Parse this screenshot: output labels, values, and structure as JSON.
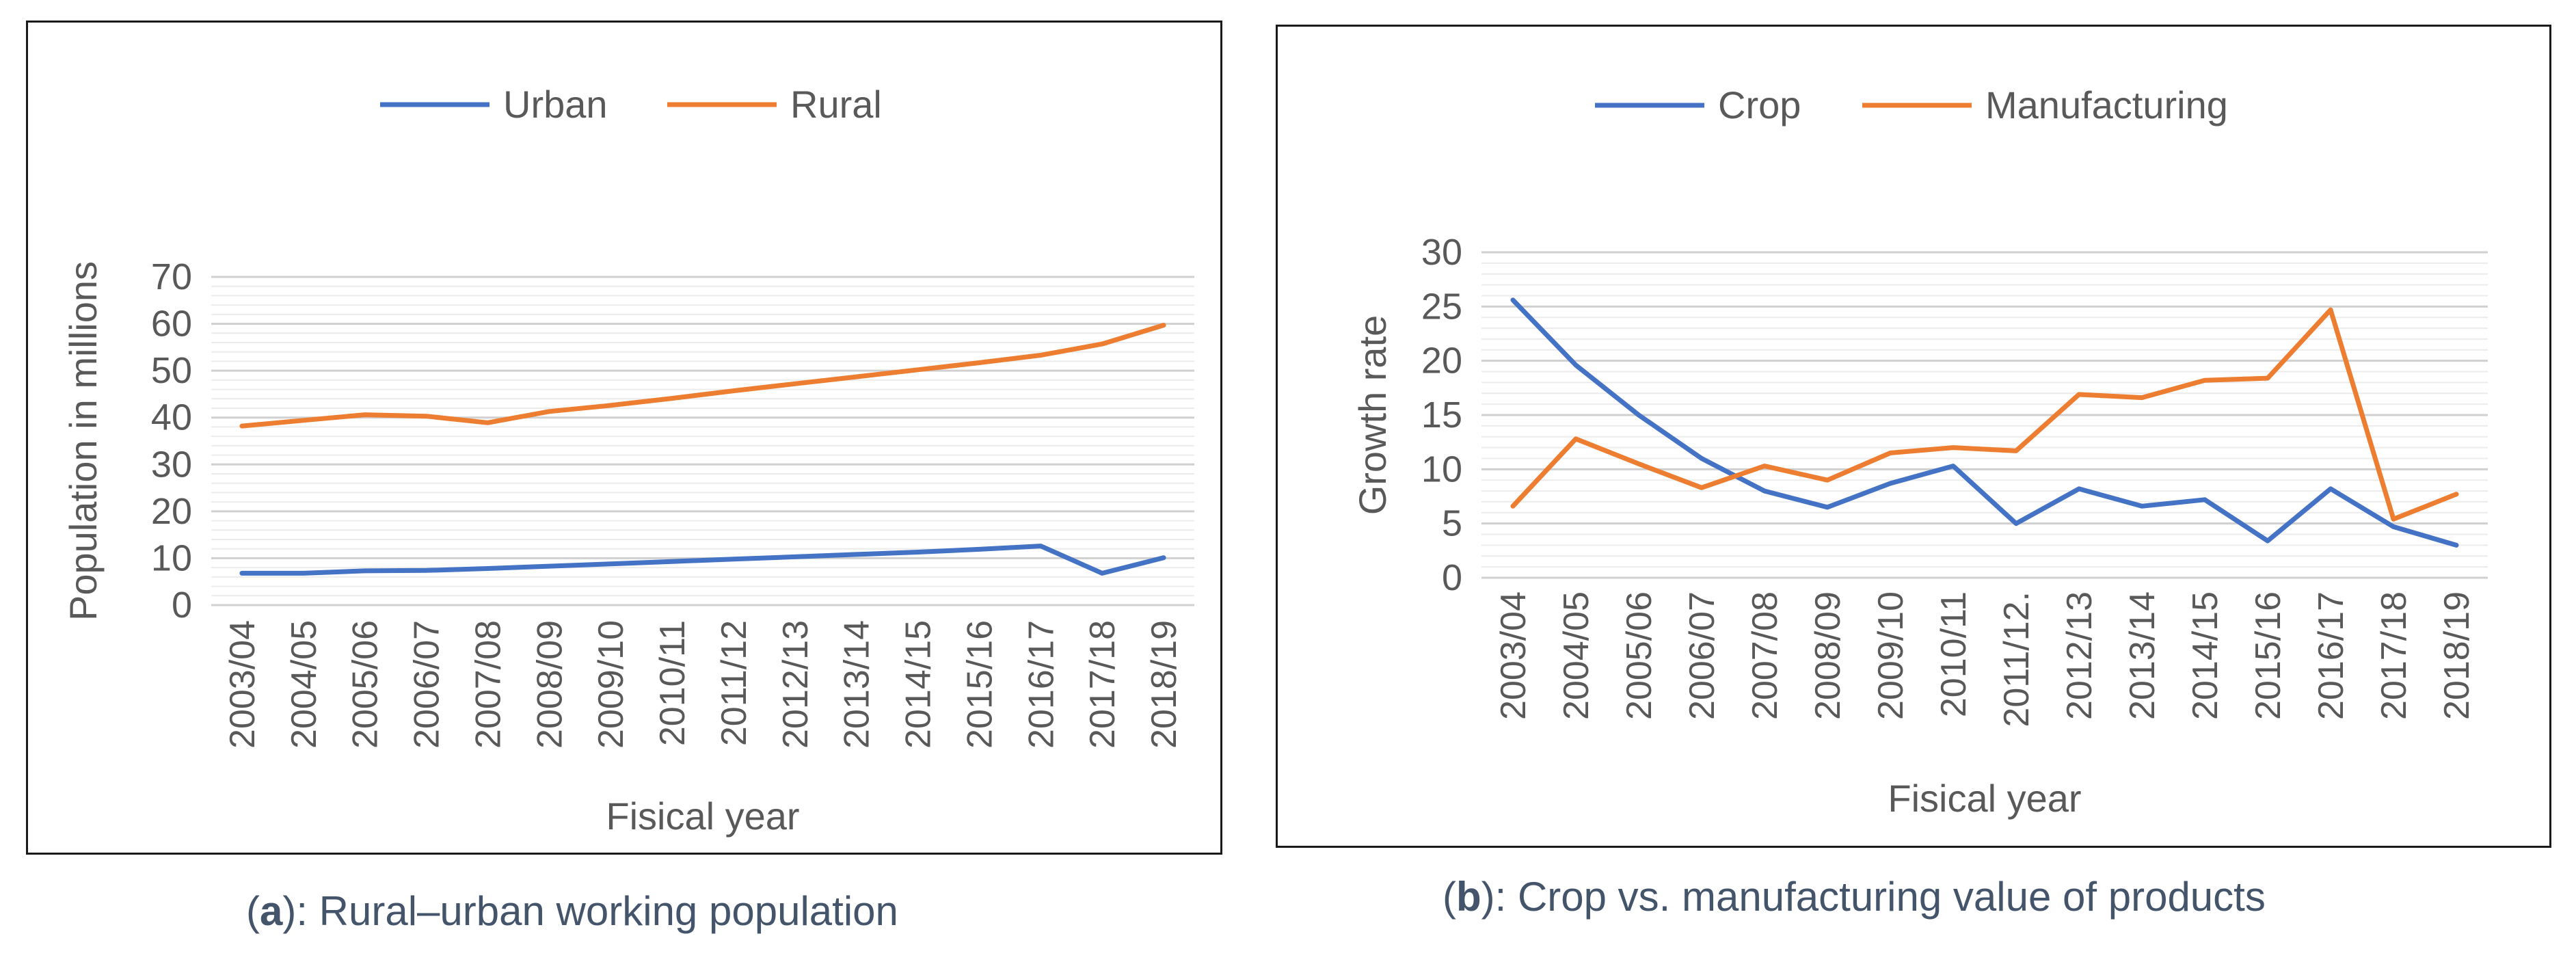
{
  "captions": {
    "a": {
      "letter": "a",
      "text": "): Rural–urban working population"
    },
    "b": {
      "letter": "b",
      "text": "): Crop vs. manufacturing value of products"
    },
    "open": "("
  },
  "chart_data": [
    {
      "type": "line",
      "categories": [
        "2003/04",
        "2004/05",
        "2005/06",
        "2006/07",
        "2007/08",
        "2008/09",
        "2009/10",
        "2010/11",
        "2011/12",
        "2012/13",
        "2013/14",
        "2014/15",
        "2015/16",
        "2016/17",
        "2017/18",
        "2018/19"
      ],
      "series": [
        {
          "name": "Urban",
          "color": "#4472c4",
          "values": [
            6.8,
            6.8,
            7.3,
            7.4,
            7.8,
            8.3,
            8.8,
            9.3,
            9.8,
            10.3,
            10.8,
            11.3,
            11.9,
            12.6,
            6.8,
            10.1
          ]
        },
        {
          "name": "Rural",
          "color": "#ed7d31",
          "values": [
            38.2,
            39.4,
            40.6,
            40.3,
            38.9,
            41.3,
            42.6,
            44.1,
            45.7,
            47.2,
            48.7,
            50.2,
            51.7,
            53.3,
            55.7,
            59.7
          ]
        }
      ],
      "xlabel": "Fisical year",
      "ylabel": "Population in millions",
      "ylim": [
        0,
        70
      ],
      "yticks": [
        "0",
        "10",
        "20",
        "30",
        "40",
        "50",
        "60",
        "70"
      ],
      "grid": true,
      "legend": "top-center"
    },
    {
      "type": "line",
      "categories": [
        "2003/04",
        "2004/05",
        "2005/06",
        "2006/07",
        "2007/08",
        "2008/09",
        "2009/10",
        "2010/11",
        "2011/12.",
        "2012/13",
        "2013/14",
        "2014/15",
        "2015/16",
        "2016/17",
        "2017/18",
        "2018/19"
      ],
      "series": [
        {
          "name": "Crop",
          "color": "#4472c4",
          "values": [
            25.6,
            19.6,
            15,
            11,
            8,
            6.5,
            8.7,
            10.3,
            5,
            8.2,
            6.6,
            7.2,
            3.4,
            8.2,
            4.7,
            3
          ]
        },
        {
          "name": "Manufacturing",
          "color": "#ed7d31",
          "values": [
            6.6,
            12.8,
            10.5,
            8.3,
            10.3,
            9,
            11.5,
            12,
            11.7,
            16.9,
            16.6,
            18.2,
            18.4,
            24.7,
            5.4,
            7.7
          ]
        }
      ],
      "xlabel": "Fisical year",
      "ylabel": "Growth rate",
      "ylim": [
        0,
        30
      ],
      "yticks": [
        "0",
        "5",
        "10",
        "15",
        "20",
        "25",
        "30"
      ],
      "grid": true,
      "legend": "top-center"
    }
  ]
}
